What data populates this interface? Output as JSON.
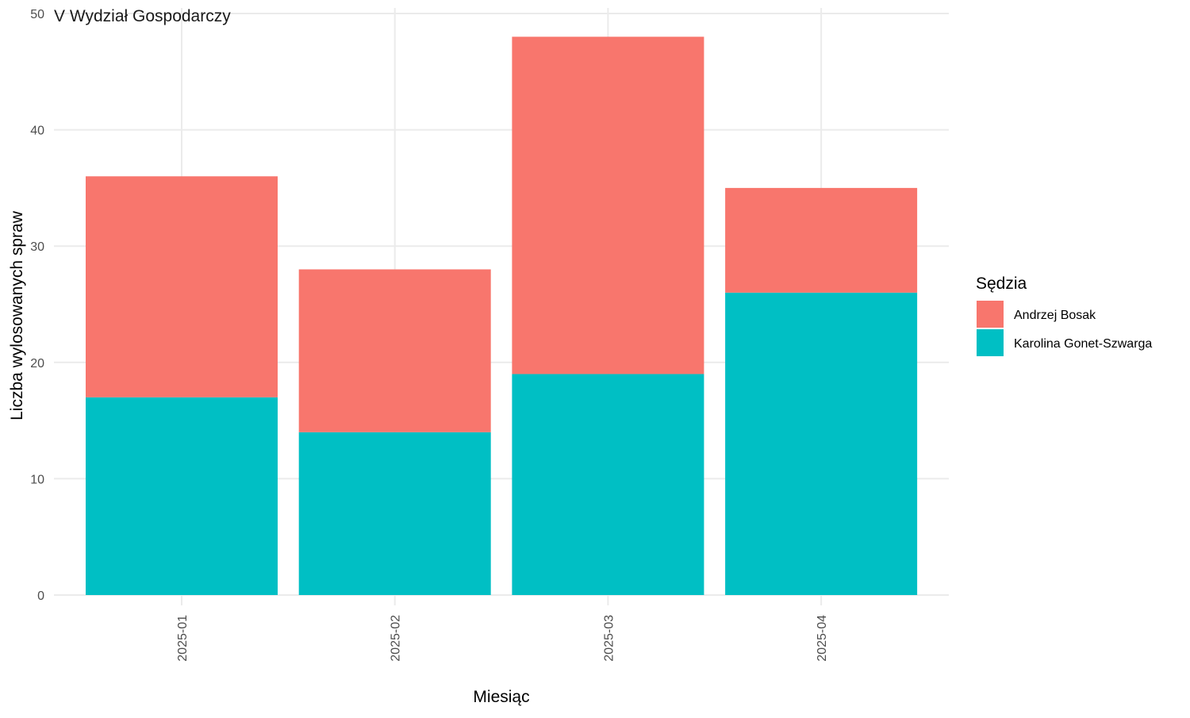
{
  "chart_data": {
    "type": "bar",
    "stacked": true,
    "facet_title": "V Wydział Gospodarczy",
    "xlabel": "Miesiąc",
    "ylabel": "Liczba wylosowanych spraw",
    "categories": [
      "2025-01",
      "2025-02",
      "2025-03",
      "2025-04"
    ],
    "series": [
      {
        "name": "Karolina Gonet-Szwarga",
        "color": "#00BFC4",
        "values": [
          17,
          14,
          19,
          26
        ]
      },
      {
        "name": "Andrzej Bosak",
        "color": "#F8766D",
        "values": [
          19,
          14,
          29,
          9
        ]
      }
    ],
    "ylim": [
      0,
      50
    ],
    "yticks": [
      0,
      10,
      20,
      30,
      40,
      50
    ],
    "grid": true,
    "legend": {
      "title": "Sędzia",
      "position": "right",
      "order": [
        "Andrzej Bosak",
        "Karolina Gonet-Szwarga"
      ]
    },
    "x_tick_rotation": "vertical"
  }
}
